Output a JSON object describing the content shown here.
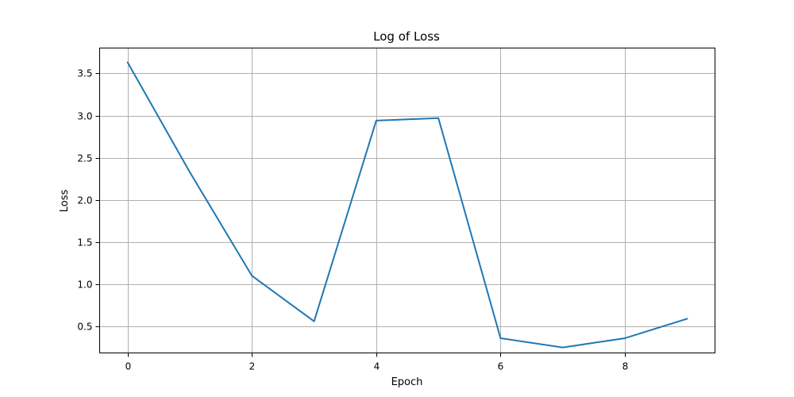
{
  "chart_data": {
    "type": "line",
    "title": "Log of Loss",
    "xlabel": "Epoch",
    "ylabel": "Loss",
    "xlim": [
      -0.45,
      9.45
    ],
    "ylim": [
      0.1855,
      3.8005
    ],
    "xticks": [
      0,
      2,
      4,
      6,
      8
    ],
    "xtick_labels": [
      "0",
      "2",
      "4",
      "6",
      "8"
    ],
    "yticks": [
      0.5,
      1.0,
      1.5,
      2.0,
      2.5,
      3.0,
      3.5
    ],
    "ytick_labels": [
      "0.5",
      "1.0",
      "1.5",
      "2.0",
      "2.5",
      "3.0",
      "3.5"
    ],
    "grid": true,
    "legend": "none",
    "x": [
      0,
      1,
      2,
      3,
      4,
      5,
      6,
      7,
      8,
      9
    ],
    "series": [
      {
        "color": "#1f77b4",
        "values": [
          3.63,
          2.33,
          1.1,
          0.56,
          2.94,
          2.97,
          0.36,
          0.25,
          0.36,
          0.59
        ]
      }
    ]
  }
}
